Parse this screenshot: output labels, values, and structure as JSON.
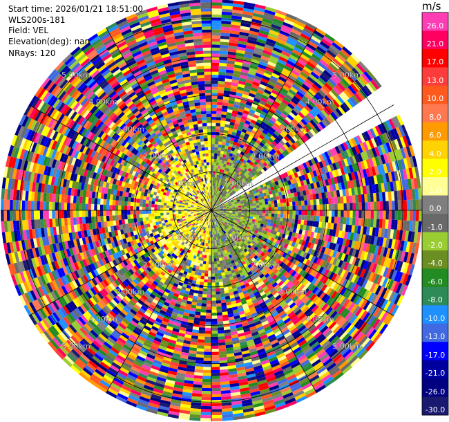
{
  "header": {
    "start_time": "Start time: 2026/01/21 18:51:00",
    "instrument": "WLS200s-181",
    "field": "Field: VEL",
    "elevation": "Elevation(deg): nan",
    "nrays": "NRays: 120"
  },
  "colorbar": {
    "unit": "m/s",
    "levels": [
      "26.0",
      "21.0",
      "17.0",
      "13.0",
      "10.0",
      "8.0",
      "6.0",
      "4.0",
      "2.0",
      "1.0",
      "0.0",
      "-1.0",
      "-2.0",
      "-4.0",
      "-6.0",
      "-8.0",
      "-10.0",
      "-13.0",
      "-17.0",
      "-21.0",
      "-26.0",
      "-30.0"
    ],
    "colors": [
      "#ff3cb4",
      "#ff0060",
      "#ff0000",
      "#ff3c3c",
      "#ff5a1e",
      "#ff7850",
      "#ff9a00",
      "#ffd200",
      "#ffff00",
      "#ffff96",
      "#7f7f7f",
      "#696969",
      "#9acd32",
      "#6b8e23",
      "#228b22",
      "#2e8b57",
      "#1e90ff",
      "#4169e1",
      "#0000ff",
      "#0000a0",
      "#000080",
      "#191970"
    ]
  },
  "chart_data": {
    "type": "heatmap",
    "title": "",
    "projection": "polar PPI",
    "field": "VEL",
    "n_rays": 120,
    "range_rings_km": [
      "1.00km",
      "2.00km",
      "3.00km",
      "4.00km",
      "5.00km"
    ],
    "max_range_km": 5.5,
    "gap_sector_deg": [
      55,
      63
    ],
    "near_range_pattern": "mostly 0 to 4 m/s (yellow / grey) west, -1 to -2 m/s (green) east, within 1.5 km",
    "far_range_pattern": "noise spanning full scale -30 to 26 m/s beyond 2 km"
  }
}
